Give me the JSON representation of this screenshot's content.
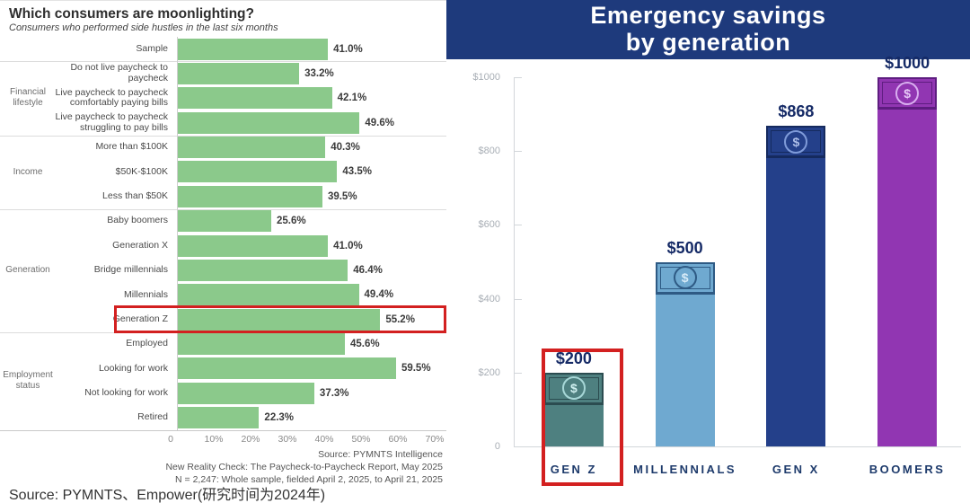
{
  "footer": {
    "source": "Source: PYMNTS、Empower(研究时间为2024年)"
  },
  "chart_data": [
    {
      "type": "bar",
      "orientation": "horizontal",
      "title": "Which consumers are moonlighting?",
      "subtitle": "Consumers who performed side hustles in the last six months",
      "categories": [
        "Sample",
        "Do not live paycheck to paycheck",
        "Live paycheck to paycheck comfortably paying bills",
        "Live paycheck to paycheck struggling to pay bills",
        "More than $100K",
        "$50K-$100K",
        "Less than $50K",
        "Baby boomers",
        "Generation X",
        "Bridge millennials",
        "Millennials",
        "Generation Z",
        "Employed",
        "Looking for work",
        "Not looking for work",
        "Retired"
      ],
      "values": [
        41.0,
        33.2,
        42.1,
        49.6,
        40.3,
        43.5,
        39.5,
        25.6,
        41.0,
        46.4,
        49.4,
        55.2,
        45.6,
        59.5,
        37.3,
        22.3
      ],
      "value_labels": [
        "41.0%",
        "33.2%",
        "42.1%",
        "49.6%",
        "40.3%",
        "43.5%",
        "39.5%",
        "25.6%",
        "41.0%",
        "46.4%",
        "49.4%",
        "55.2%",
        "45.6%",
        "59.5%",
        "37.3%",
        "22.3%"
      ],
      "groups": [
        {
          "label": "Financial lifestyle",
          "start": 1,
          "end": 3
        },
        {
          "label": "Income",
          "start": 4,
          "end": 6
        },
        {
          "label": "Generation",
          "start": 7,
          "end": 11
        },
        {
          "label": "Employment status",
          "start": 12,
          "end": 15
        }
      ],
      "separators_after": [
        0,
        3,
        6,
        11
      ],
      "x_ticks": [
        "0",
        "10%",
        "20%",
        "30%",
        "40%",
        "50%",
        "60%",
        "70%"
      ],
      "xlim": [
        0,
        70
      ],
      "grid": false,
      "bar_color": "#8BC98B",
      "highlight_category": "Generation Z",
      "highlight_color": "#D32020",
      "source_lines": [
        "Source: PYMNTS Intelligence",
        "New Reality Check: The Paycheck-to-Paycheck Report, May 2025",
        "N = 2,247: Whole sample, fielded April 2, 2025, to April 21, 2025"
      ]
    },
    {
      "type": "bar",
      "orientation": "vertical",
      "title": "Emergency savings by generation",
      "title_lines": [
        "Emergency savings",
        "by generation"
      ],
      "banner_color": "#1E3A7C",
      "categories": [
        "GEN Z",
        "MILLENNIALS",
        "GEN X",
        "BOOMERS"
      ],
      "values": [
        200,
        500,
        868,
        1000
      ],
      "value_labels": [
        "$200",
        "$500",
        "$868",
        "$1000"
      ],
      "y_ticks": [
        "$1000",
        "$800",
        "$600",
        "$400",
        "$200",
        "0"
      ],
      "y_tick_values": [
        1000,
        800,
        600,
        400,
        200,
        0
      ],
      "ylim": [
        0,
        1000
      ],
      "grid": false,
      "bar_colors": [
        {
          "fill": "#4E8080",
          "border": "#2B4C50",
          "accent": "#A7D7D7",
          "glyph": "#CFEFEF"
        },
        {
          "fill": "#6FA9D0",
          "border": "#2E5A84",
          "accent": "#2E5A84",
          "glyph": "#D6EAF7"
        },
        {
          "fill": "#24408A",
          "border": "#152A5E",
          "accent": "#7F9BD9",
          "glyph": "#AEBFE8"
        },
        {
          "fill": "#9136B2",
          "border": "#5E1D80",
          "accent": "#D9AEF0",
          "glyph": "#E7C8F7"
        }
      ],
      "bill_icon": "dollar-bill-icon",
      "highlight_category": "GEN Z",
      "highlight_color": "#D32020"
    }
  ]
}
